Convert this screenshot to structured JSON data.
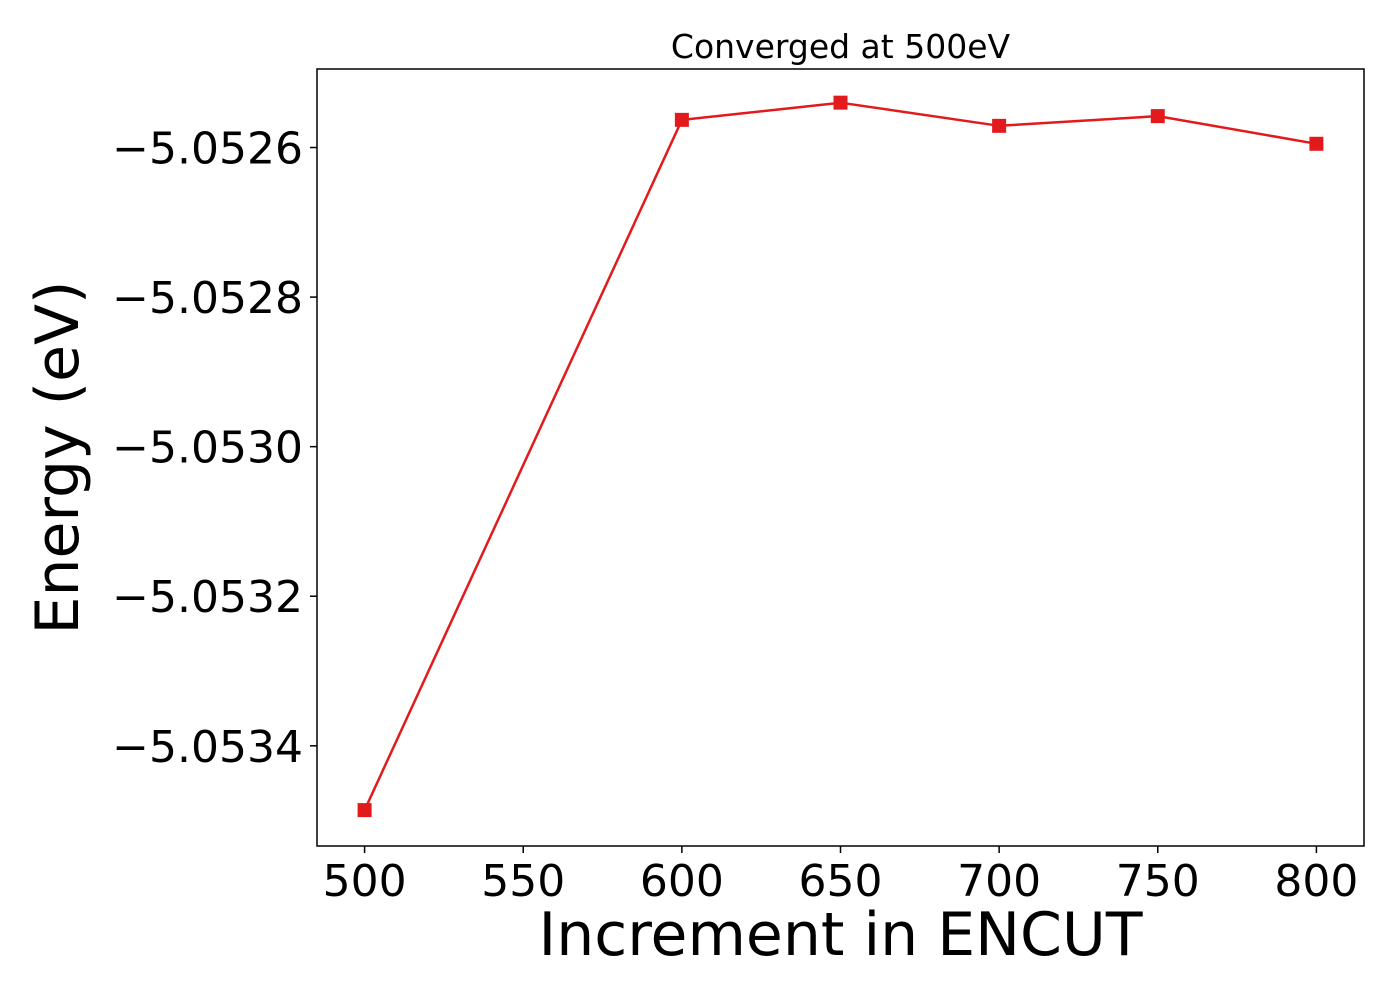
{
  "chart_data": {
    "type": "line",
    "title": "Converged at 500eV",
    "xlabel": "Increment in ENCUT",
    "ylabel": "Energy (eV)",
    "x": [
      500,
      600,
      650,
      700,
      750,
      800
    ],
    "series": [
      {
        "values": [
          -5.053486,
          -5.052563,
          -5.05254,
          -5.052571,
          -5.052558,
          -5.052595
        ],
        "color": "#e31a1c",
        "marker": "square"
      }
    ],
    "xticks": [
      500,
      550,
      600,
      650,
      700,
      750,
      800
    ],
    "xtick_labels": [
      "500",
      "550",
      "600",
      "650",
      "700",
      "750",
      "800"
    ],
    "yticks": [
      -5.0526,
      -5.0528,
      -5.053,
      -5.0532,
      -5.0534
    ],
    "ytick_labels": [
      "−5.0526",
      "−5.0528",
      "−5.0530",
      "−5.0532",
      "−5.0534"
    ],
    "xlim": [
      485,
      815
    ],
    "ylim": [
      -5.053534,
      -5.052495
    ],
    "grid": false,
    "legend": false
  }
}
